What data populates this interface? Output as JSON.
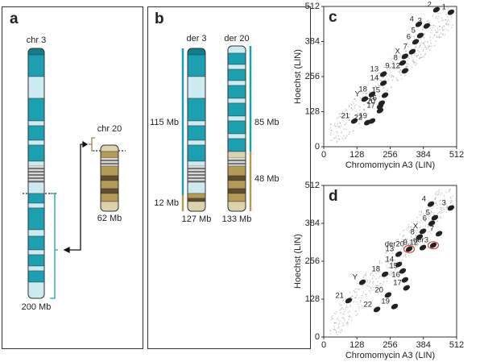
{
  "panels": {
    "a": {
      "label": "a",
      "chr3": {
        "name": "chr 3",
        "size": "200 Mb"
      },
      "chr20": {
        "name": "chr 20",
        "size": "62 Mb"
      }
    },
    "b": {
      "label": "b",
      "der3": {
        "name": "der 3",
        "size": "127 Mb"
      },
      "der20": {
        "name": "der 20",
        "size": "133 Mb"
      },
      "segments": [
        "115 Mb",
        "12 Mb",
        "85 Mb",
        "48 Mb"
      ]
    },
    "plots": [
      {
        "label": "c",
        "x_label": "Chromomycin A3 (LIN)",
        "y_label": "Hoechst (LIN)",
        "xlim": [
          0,
          512
        ],
        "ylim": [
          0,
          512
        ],
        "xticks": [
          0,
          128,
          256,
          384,
          512
        ],
        "yticks": [
          0,
          128,
          256,
          384,
          512
        ],
        "peaks": [
          {
            "name": "1",
            "x": 490,
            "y": 491
          },
          {
            "name": "2",
            "x": 434,
            "y": 500
          },
          {
            "name": "3",
            "x": 397,
            "y": 441
          },
          {
            "name": "4",
            "x": 366,
            "y": 447
          },
          {
            "name": "5",
            "x": 372,
            "y": 406
          },
          {
            "name": "6",
            "x": 354,
            "y": 383
          },
          {
            "name": "7",
            "x": 341,
            "y": 347
          },
          {
            "name": "X",
            "x": 313,
            "y": 330
          },
          {
            "name": "8",
            "x": 304,
            "y": 306
          },
          {
            "name": "9.12",
            "x": 313,
            "y": 277
          },
          {
            "name": "13",
            "x": 230,
            "y": 265
          },
          {
            "name": "14",
            "x": 230,
            "y": 232
          },
          {
            "name": "Y",
            "x": 158,
            "y": 174
          },
          {
            "name": "18",
            "x": 186,
            "y": 191
          },
          {
            "name": "15",
            "x": 236,
            "y": 188
          },
          {
            "name": "16",
            "x": 223,
            "y": 159
          },
          {
            "name": "17",
            "x": 217,
            "y": 132
          },
          {
            "name": "20",
            "x": 217,
            "y": 147
          },
          {
            "name": "19",
            "x": 186,
            "y": 94
          },
          {
            "name": "21",
            "x": 118,
            "y": 94
          },
          {
            "name": "22",
            "x": 168,
            "y": 88
          }
        ]
      },
      {
        "label": "d",
        "x_label": "Chromomycin A3 (LIN)",
        "y_label": "Hoechst (LIN)",
        "xlim": [
          0,
          512
        ],
        "ylim": [
          0,
          512
        ],
        "xticks": [
          0,
          128,
          256,
          384,
          512
        ],
        "yticks": [
          0,
          128,
          256,
          384,
          512
        ],
        "peaks": [
          {
            "name": "4",
            "x": 413,
            "y": 449
          },
          {
            "name": "3",
            "x": 490,
            "y": 436
          },
          {
            "name": "5",
            "x": 428,
            "y": 403
          },
          {
            "name": "6",
            "x": 416,
            "y": 384
          },
          {
            "name": "X",
            "x": 382,
            "y": 357
          },
          {
            "name": "7",
            "x": 444,
            "y": 349
          },
          {
            "name": "8",
            "x": 369,
            "y": 338
          },
          {
            "name": "der20",
            "x": 329,
            "y": 297,
            "color": "#d9443f"
          },
          {
            "name": "der3",
            "x": 422,
            "y": 310,
            "color": "#d9443f"
          },
          {
            "name": "9.12",
            "x": 382,
            "y": 302
          },
          {
            "name": "13",
            "x": 289,
            "y": 280
          },
          {
            "name": "14",
            "x": 289,
            "y": 245
          },
          {
            "name": "18",
            "x": 236,
            "y": 212
          },
          {
            "name": "15",
            "x": 304,
            "y": 223
          },
          {
            "name": "16",
            "x": 313,
            "y": 193
          },
          {
            "name": "17",
            "x": 319,
            "y": 166
          },
          {
            "name": "Y",
            "x": 149,
            "y": 185
          },
          {
            "name": "20",
            "x": 248,
            "y": 142
          },
          {
            "name": "21",
            "x": 96,
            "y": 123
          },
          {
            "name": "22",
            "x": 205,
            "y": 93
          },
          {
            "name": "19",
            "x": 273,
            "y": 103
          }
        ]
      }
    ]
  }
}
